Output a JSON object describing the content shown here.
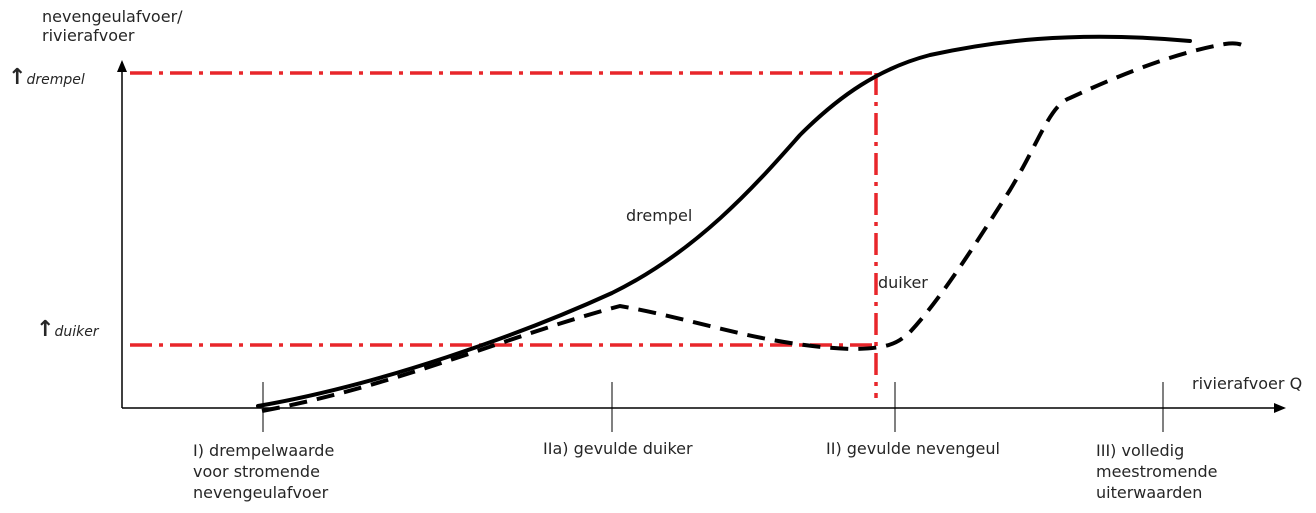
{
  "y_axis_label": [
    "nevengeulafvoer/",
    "rivierafvoer"
  ],
  "x_axis_label": "rivierafvoer Q",
  "y_markers": {
    "drempel": {
      "arrow": "↑",
      "sub": "drempel"
    },
    "duiker": {
      "arrow": "↑",
      "sub": "duiker"
    }
  },
  "curves": {
    "drempel": "drempel",
    "duiker": "duiker"
  },
  "stages": [
    {
      "lines": [
        "I) drempelwaarde",
        "voor stromende",
        "nevengeulafvoer"
      ]
    },
    {
      "lines": [
        "IIa) gevulde duiker"
      ]
    },
    {
      "lines": [
        "II) gevulde nevengeul"
      ]
    },
    {
      "lines": [
        "III) volledig",
        "meestromende",
        "uiterwaarden"
      ]
    }
  ],
  "colors": {
    "axis": "#000000",
    "threshold": "#e8262b",
    "curve": "#000000"
  }
}
